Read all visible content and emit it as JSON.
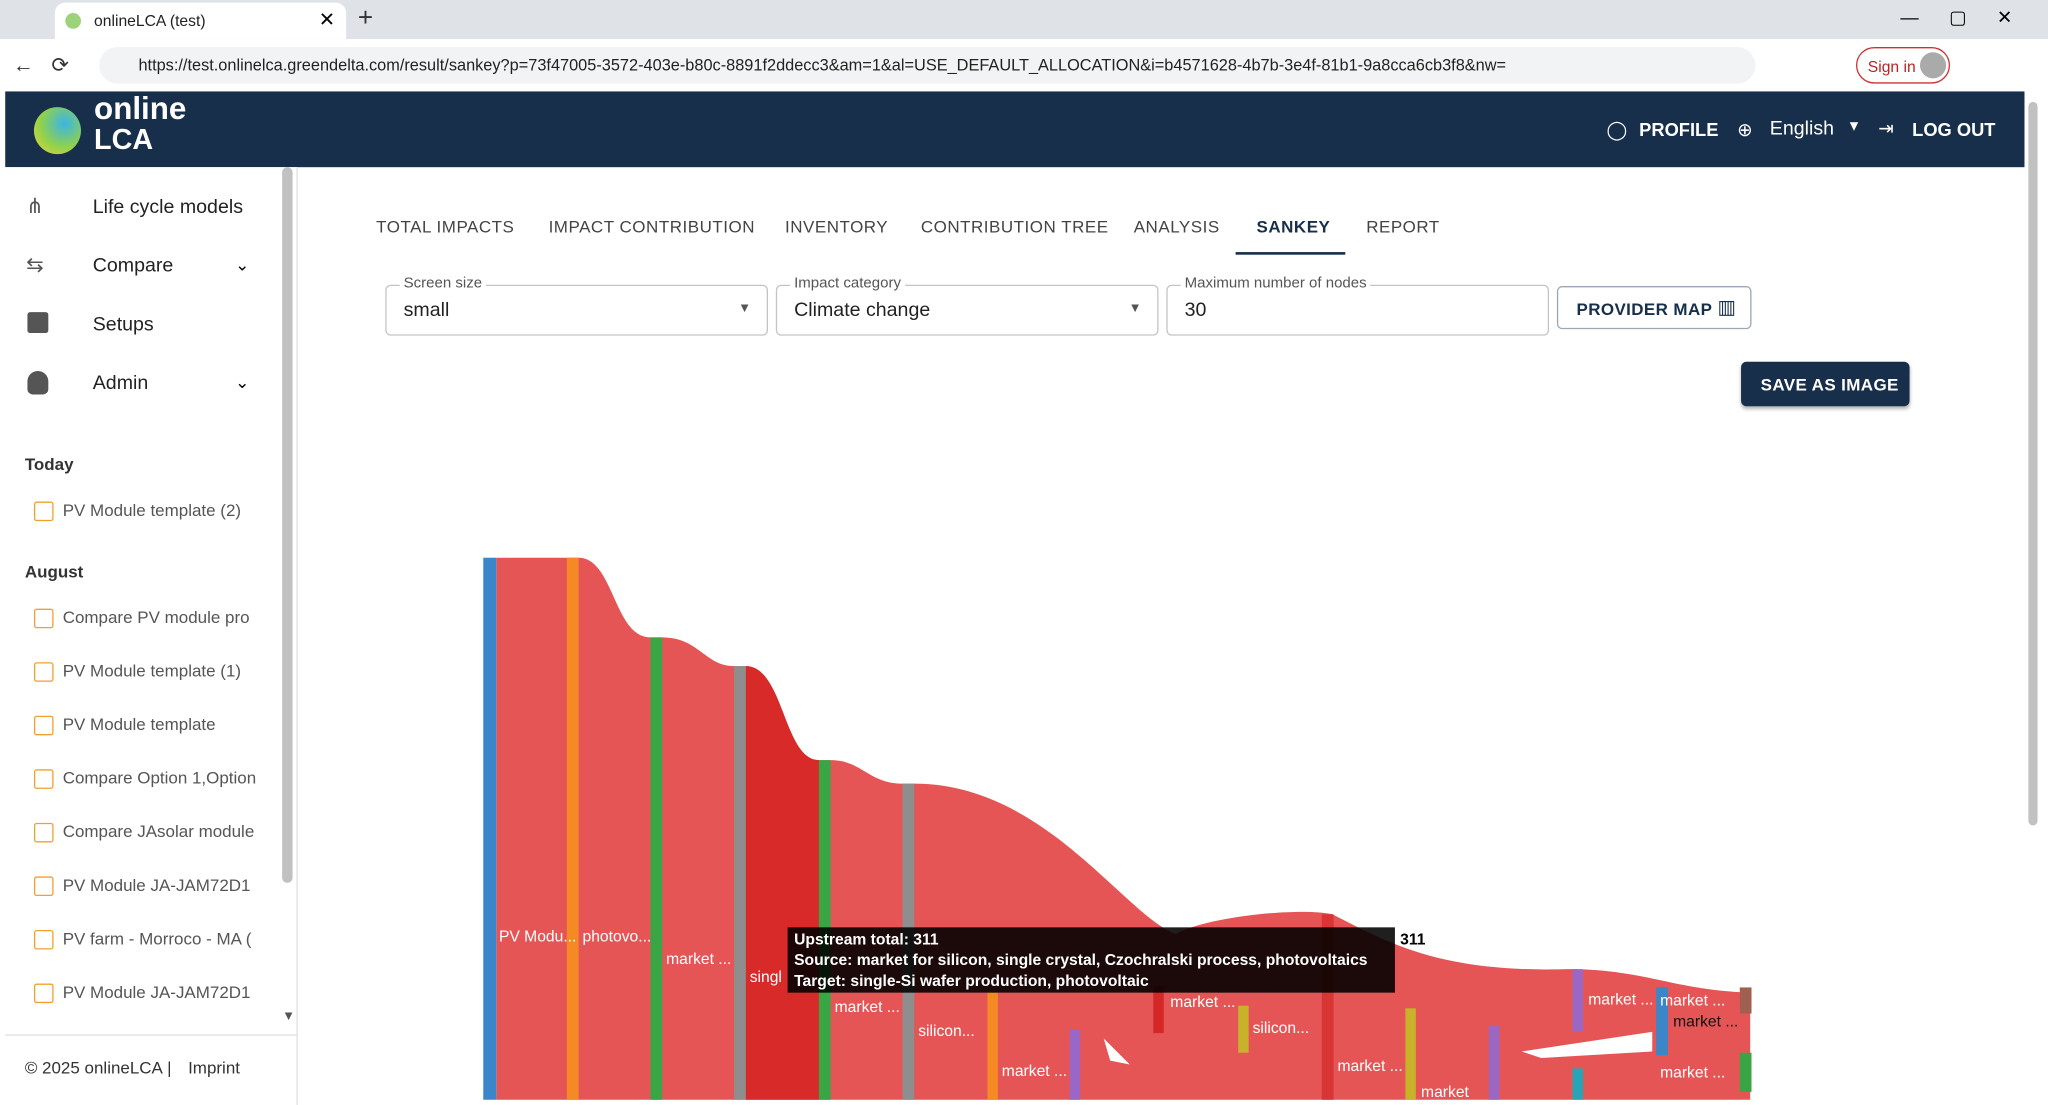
{
  "browser": {
    "tab_title": "onlineLCA (test)",
    "url": "https://test.onlinelca.greendelta.com/result/sankey?p=73f47005-3572-403e-b80c-8891f2ddecc3&am=1&al=USE_DEFAULT_ALLOCATION&i=b4571628-4b7b-3e4f-81b1-9a8cca6cb3f8&nw=",
    "sign_in": "Sign in"
  },
  "header": {
    "logo_line1": "online",
    "logo_line2": "LCA",
    "profile": "PROFILE",
    "language": "English",
    "logout": "LOG OUT"
  },
  "sidebar": {
    "nav": [
      "Life cycle models",
      "Compare",
      "Setups",
      "Admin"
    ],
    "groups": [
      {
        "title": "Today",
        "items": [
          "PV Module template (2)"
        ]
      },
      {
        "title": "August",
        "items": [
          "Compare PV module pro",
          "PV Module template (1)",
          "PV Module template",
          "Compare Option 1,Option",
          "Compare JAsolar module",
          "PV Module JA-JAM72D1",
          "PV farm - Morroco - MA (",
          "PV Module JA-JAM72D1"
        ]
      }
    ],
    "copyright": "© 2025 onlineLCA",
    "imprint": "Imprint"
  },
  "tabs": [
    "TOTAL IMPACTS",
    "IMPACT CONTRIBUTION",
    "INVENTORY",
    "CONTRIBUTION TREE",
    "ANALYSIS",
    "SANKEY",
    "REPORT"
  ],
  "controls": {
    "screen_size": {
      "label": "Screen size",
      "value": "small"
    },
    "impact_category": {
      "label": "Impact category",
      "value": "Climate change"
    },
    "max_nodes": {
      "label": "Maximum number of nodes",
      "value": "30"
    },
    "provider_map": "PROVIDER MAP",
    "save_image": "SAVE AS IMAGE"
  },
  "sankey": {
    "node_labels": [
      "PV Modu...",
      "photovo...",
      "market ...",
      "singl",
      "market ...",
      "silicon...",
      "market ...",
      "market ...",
      "silicon...",
      "market ...",
      "market",
      "market ...",
      "market ...",
      "market ...",
      "market ..."
    ],
    "value_label": "311",
    "tooltip": [
      "Upstream total: 311",
      "Source: market for silicon, single crystal, Czochralski process, photovoltaics",
      "Target: single-Si wafer production, photovoltaic"
    ]
  }
}
